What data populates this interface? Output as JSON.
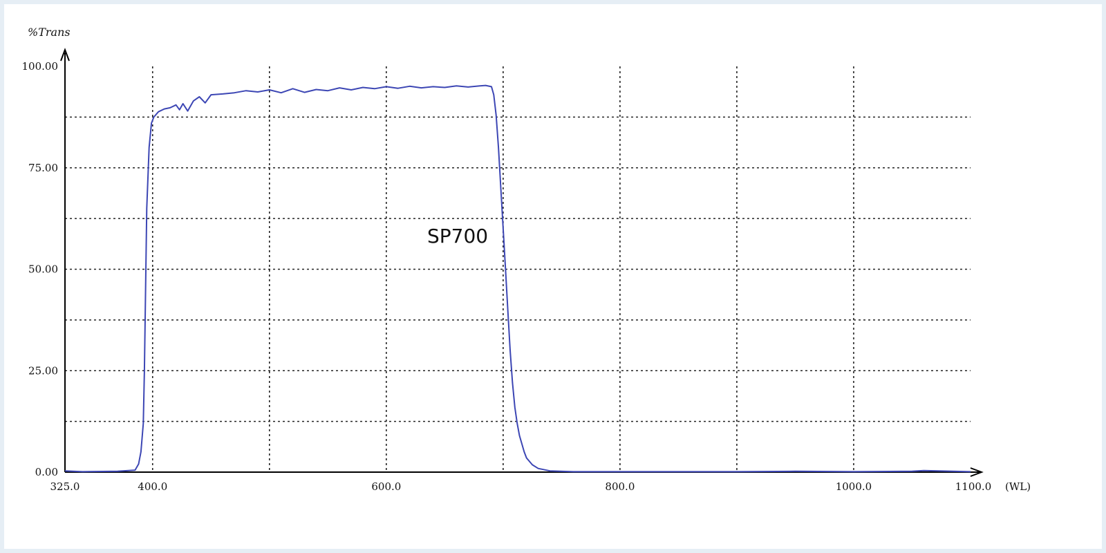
{
  "chart_data": {
    "type": "line",
    "title": "",
    "ylabel": "%Trans",
    "xlabel": "(WL)",
    "xlim": [
      325,
      1100
    ],
    "ylim": [
      0,
      100
    ],
    "x_ticks": [
      325,
      400,
      600,
      800,
      1000,
      1100
    ],
    "x_tick_labels": [
      "325.0",
      "400.0",
      "600.0",
      "800.0",
      "1000.0",
      "1100.0"
    ],
    "y_ticks": [
      0,
      25,
      50,
      75,
      100
    ],
    "y_tick_labels": [
      "0.00",
      "25.00",
      "50.00",
      "75.00",
      "100.00"
    ],
    "x_grid": [
      400,
      500,
      600,
      700,
      800,
      900,
      1000
    ],
    "y_grid": [
      12.5,
      25,
      37.5,
      50,
      62.5,
      75,
      87.5
    ],
    "grid": true,
    "grid_style": "dotted",
    "annotation": "SP700",
    "series": [
      {
        "color": "#3c46b4",
        "x": [
          325,
          340,
          370,
          385,
          388,
          390,
          392,
          393,
          394,
          395,
          397,
          399,
          401,
          405,
          410,
          415,
          420,
          423,
          426,
          430,
          435,
          440,
          445,
          450,
          460,
          470,
          480,
          490,
          500,
          510,
          520,
          530,
          540,
          550,
          560,
          570,
          580,
          590,
          600,
          610,
          620,
          630,
          640,
          650,
          660,
          670,
          680,
          685,
          690,
          692,
          694,
          696,
          698,
          700,
          702,
          704,
          706,
          708,
          710,
          712,
          714,
          716,
          718,
          720,
          725,
          730,
          740,
          760,
          800,
          850,
          900,
          950,
          1000,
          1050,
          1060,
          1100
        ],
        "y": [
          0.3,
          0.1,
          0.2,
          0.5,
          2.0,
          5.0,
          12.0,
          25.0,
          45.0,
          65.0,
          80.0,
          86.0,
          87.5,
          88.8,
          89.5,
          89.8,
          90.5,
          89.3,
          90.8,
          89.0,
          91.5,
          92.5,
          91.0,
          93.0,
          93.2,
          93.5,
          94.0,
          93.7,
          94.2,
          93.5,
          94.5,
          93.6,
          94.3,
          94.0,
          94.7,
          94.2,
          94.8,
          94.5,
          95.0,
          94.6,
          95.1,
          94.7,
          95.0,
          94.8,
          95.2,
          94.9,
          95.2,
          95.3,
          95.0,
          93.0,
          88.0,
          80.0,
          70.0,
          60.0,
          50.0,
          40.0,
          30.0,
          22.0,
          16.0,
          12.0,
          9.0,
          7.0,
          5.0,
          3.5,
          1.8,
          0.9,
          0.3,
          0.1,
          0.1,
          0.1,
          0.1,
          0.2,
          0.1,
          0.2,
          0.4,
          0.1
        ]
      }
    ]
  }
}
